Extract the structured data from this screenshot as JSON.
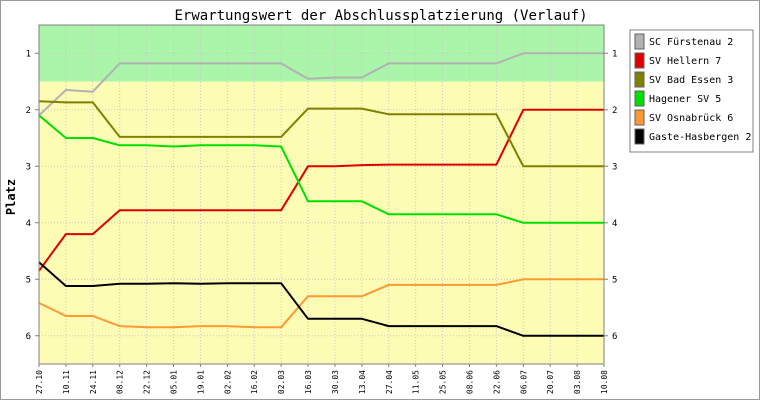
{
  "chart_data": {
    "type": "line",
    "title": "Erwartungswert der Abschlussplatzierung (Verlauf)",
    "xlabel": "",
    "ylabel": "Platz",
    "ylim": [
      6.5,
      0.5
    ],
    "y_inverted": true,
    "yticks": [
      1,
      2,
      3,
      4,
      5,
      6
    ],
    "bands": [
      {
        "from": 0.5,
        "to": 1.5,
        "color": "#aaf5aa"
      },
      {
        "from": 1.5,
        "to": 6.5,
        "color": "#fcfcb4"
      }
    ],
    "x": [
      "27.10",
      "10.11",
      "24.11",
      "08.12",
      "22.12",
      "05.01",
      "19.01",
      "02.02",
      "16.02",
      "02.03",
      "16.03",
      "30.03",
      "13.04",
      "27.04",
      "11.05",
      "25.05",
      "08.06",
      "22.06",
      "06.07",
      "20.07",
      "03.08",
      "10.08"
    ],
    "series": [
      {
        "name": "SC Fürstenau 2",
        "color": "#b2b2b2",
        "values": [
          2.1,
          1.65,
          1.68,
          1.18,
          1.18,
          1.18,
          1.18,
          1.18,
          1.18,
          1.18,
          1.45,
          1.43,
          1.43,
          1.18,
          1.18,
          1.18,
          1.18,
          1.18,
          1.0,
          1.0,
          1.0,
          1.0
        ]
      },
      {
        "name": "SV Hellern 7",
        "color": "#e00000",
        "values": [
          4.85,
          4.2,
          4.2,
          3.78,
          3.78,
          3.78,
          3.78,
          3.78,
          3.78,
          3.78,
          3.0,
          3.0,
          2.98,
          2.97,
          2.97,
          2.97,
          2.97,
          2.97,
          2.0,
          2.0,
          2.0,
          2.0
        ]
      },
      {
        "name": "SV Bad Essen 3",
        "color": "#808000",
        "values": [
          1.85,
          1.87,
          1.87,
          2.48,
          2.48,
          2.48,
          2.48,
          2.48,
          2.48,
          2.48,
          1.98,
          1.98,
          1.98,
          2.08,
          2.08,
          2.08,
          2.08,
          2.08,
          3.0,
          3.0,
          3.0,
          3.0
        ]
      },
      {
        "name": "Hagener SV 5",
        "color": "#00e000",
        "values": [
          2.1,
          2.5,
          2.5,
          2.63,
          2.63,
          2.65,
          2.63,
          2.63,
          2.63,
          2.65,
          3.62,
          3.62,
          3.62,
          3.85,
          3.85,
          3.85,
          3.85,
          3.85,
          4.0,
          4.0,
          4.0,
          4.0
        ]
      },
      {
        "name": "SV Osnabrück 6",
        "color": "#ff9933",
        "values": [
          5.42,
          5.65,
          5.65,
          5.83,
          5.85,
          5.85,
          5.83,
          5.83,
          5.85,
          5.85,
          5.3,
          5.3,
          5.3,
          5.1,
          5.1,
          5.1,
          5.1,
          5.1,
          5.0,
          5.0,
          5.0,
          5.0
        ]
      },
      {
        "name": "Gaste-Hasbergen 2",
        "color": "#000000",
        "values": [
          4.7,
          5.12,
          5.12,
          5.08,
          5.08,
          5.07,
          5.08,
          5.07,
          5.07,
          5.07,
          5.7,
          5.7,
          5.7,
          5.83,
          5.83,
          5.83,
          5.83,
          5.83,
          6.0,
          6.0,
          6.0,
          6.0
        ]
      }
    ]
  }
}
